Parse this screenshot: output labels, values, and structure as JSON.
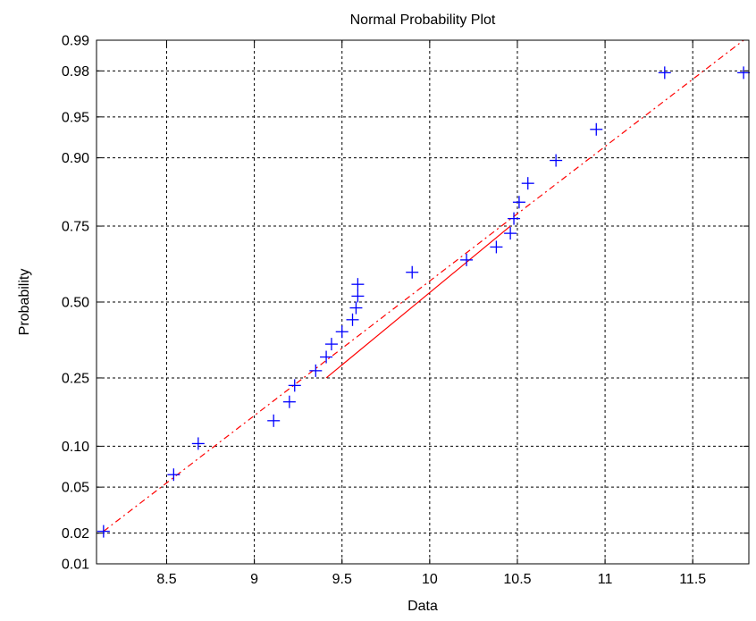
{
  "chart_data": {
    "type": "scatter",
    "title": "Normal Probability Plot",
    "xlabel": "Data",
    "ylabel": "Probability",
    "xlim": [
      8.1,
      11.82
    ],
    "y_scale": "normal-probability",
    "ylim": [
      0.01,
      0.99
    ],
    "grid": true,
    "x_ticks": [
      {
        "value": 8.5,
        "label": "8.5"
      },
      {
        "value": 9,
        "label": "9"
      },
      {
        "value": 9.5,
        "label": "9.5"
      },
      {
        "value": 10,
        "label": "10"
      },
      {
        "value": 10.5,
        "label": "10.5"
      },
      {
        "value": 11,
        "label": "11"
      },
      {
        "value": 11.5,
        "label": "11.5"
      }
    ],
    "y_ticks": [
      {
        "value": 0.01,
        "label": "0.01"
      },
      {
        "value": 0.02,
        "label": "0.02"
      },
      {
        "value": 0.05,
        "label": "0.05"
      },
      {
        "value": 0.1,
        "label": "0.10"
      },
      {
        "value": 0.25,
        "label": "0.25"
      },
      {
        "value": 0.5,
        "label": "0.50"
      },
      {
        "value": 0.75,
        "label": "0.75"
      },
      {
        "value": 0.9,
        "label": "0.90"
      },
      {
        "value": 0.95,
        "label": "0.95"
      },
      {
        "value": 0.98,
        "label": "0.98"
      },
      {
        "value": 0.99,
        "label": "0.99"
      }
    ],
    "points": [
      {
        "x": 8.14,
        "p": 0.0208
      },
      {
        "x": 8.54,
        "p": 0.0625
      },
      {
        "x": 8.68,
        "p": 0.1042
      },
      {
        "x": 9.11,
        "p": 0.1458
      },
      {
        "x": 9.2,
        "p": 0.1875
      },
      {
        "x": 9.23,
        "p": 0.2292
      },
      {
        "x": 9.35,
        "p": 0.2708
      },
      {
        "x": 9.41,
        "p": 0.3125
      },
      {
        "x": 9.44,
        "p": 0.3542
      },
      {
        "x": 9.5,
        "p": 0.3958
      },
      {
        "x": 9.56,
        "p": 0.4375
      },
      {
        "x": 9.58,
        "p": 0.4792
      },
      {
        "x": 9.59,
        "p": 0.5208
      },
      {
        "x": 9.59,
        "p": 0.5625
      },
      {
        "x": 9.9,
        "p": 0.6042
      },
      {
        "x": 10.21,
        "p": 0.6458
      },
      {
        "x": 10.38,
        "p": 0.6875
      },
      {
        "x": 10.46,
        "p": 0.7292
      },
      {
        "x": 10.48,
        "p": 0.7708
      },
      {
        "x": 10.51,
        "p": 0.8125
      },
      {
        "x": 10.56,
        "p": 0.8542
      },
      {
        "x": 10.72,
        "p": 0.8958
      },
      {
        "x": 10.95,
        "p": 0.9375
      },
      {
        "x": 11.34,
        "p": 0.9792
      },
      {
        "x": 11.79,
        "p": 0.9792
      }
    ],
    "fit_line": {
      "solid": [
        {
          "x": 9.41,
          "p": 0.25
        },
        {
          "x": 10.46,
          "p": 0.75
        }
      ],
      "dashed": [
        {
          "x": 8.14,
          "p": 0.0208
        },
        {
          "x": 11.79,
          "p": 0.99
        }
      ]
    },
    "colors": {
      "points": "#0000ff",
      "fit_line": "#ff0000",
      "grid": "#000000",
      "axes": "#000000"
    }
  }
}
